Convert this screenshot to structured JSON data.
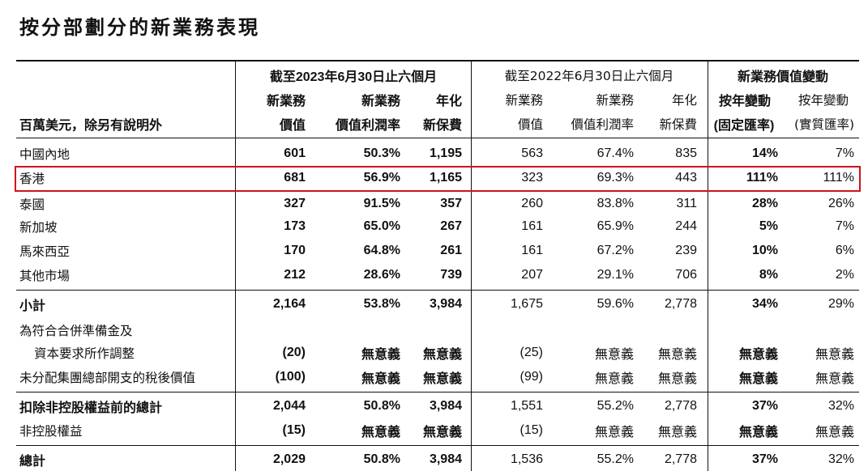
{
  "title": "按分部劃分的新業務表現",
  "header": {
    "group_2023": "截至2023年6月30日止六個月",
    "group_2022": "截至2022年6月30日止六個月",
    "group_change": "新業務價值變動",
    "unit_label": "百萬美元，除另有說明外",
    "col1_l1": "新業務",
    "col1_l2": "價值",
    "col2_l1": "新業務",
    "col2_l2": "價值利潤率",
    "col3_l1": "年化",
    "col3_l2": "新保費",
    "col4_l1": "新業務",
    "col4_l2": "價值",
    "col5_l1": "新業務",
    "col5_l2": "價值利潤率",
    "col6_l1": "年化",
    "col6_l2": "新保費",
    "col7_l1": "按年變動",
    "col7_l2": "(固定匯率)",
    "col8_l1": "按年變動",
    "col8_l2": "(實質匯率)"
  },
  "rows": [
    {
      "label": "中國內地",
      "v": [
        "601",
        "50.3%",
        "1,195",
        "563",
        "67.4%",
        "835",
        "14%",
        "7%"
      ]
    },
    {
      "label": "香港",
      "v": [
        "681",
        "56.9%",
        "1,165",
        "323",
        "69.3%",
        "443",
        "111%",
        "111%"
      ]
    },
    {
      "label": "泰國",
      "v": [
        "327",
        "91.5%",
        "357",
        "260",
        "83.8%",
        "311",
        "28%",
        "26%"
      ]
    },
    {
      "label": "新加坡",
      "v": [
        "173",
        "65.0%",
        "267",
        "161",
        "65.9%",
        "244",
        "5%",
        "7%"
      ]
    },
    {
      "label": "馬來西亞",
      "v": [
        "170",
        "64.8%",
        "261",
        "161",
        "67.2%",
        "239",
        "10%",
        "6%"
      ]
    },
    {
      "label": "其他市場",
      "v": [
        "212",
        "28.6%",
        "739",
        "207",
        "29.1%",
        "706",
        "8%",
        "2%"
      ]
    },
    {
      "label": "小計",
      "v": [
        "2,164",
        "53.8%",
        "3,984",
        "1,675",
        "59.6%",
        "2,778",
        "34%",
        "29%"
      ]
    },
    {
      "label": "為符合合併準備金及",
      "v": [
        "",
        "",
        "",
        "",
        "",
        "",
        "",
        ""
      ]
    },
    {
      "label": "資本要求所作調整",
      "v": [
        "(20)",
        "無意義",
        "無意義",
        "(25)",
        "無意義",
        "無意義",
        "無意義",
        "無意義"
      ]
    },
    {
      "label": "未分配集團總部開支的稅後價值",
      "v": [
        "(100)",
        "無意義",
        "無意義",
        "(99)",
        "無意義",
        "無意義",
        "無意義",
        "無意義"
      ]
    },
    {
      "label": "扣除非控股權益前的總計",
      "v": [
        "2,044",
        "50.8%",
        "3,984",
        "1,551",
        "55.2%",
        "2,778",
        "37%",
        "32%"
      ]
    },
    {
      "label": "非控股權益",
      "v": [
        "(15)",
        "無意義",
        "無意義",
        "(15)",
        "無意義",
        "無意義",
        "無意義",
        "無意義"
      ]
    },
    {
      "label": "總計",
      "v": [
        "2,029",
        "50.8%",
        "3,984",
        "1,536",
        "55.2%",
        "2,778",
        "37%",
        "32%"
      ]
    }
  ]
}
